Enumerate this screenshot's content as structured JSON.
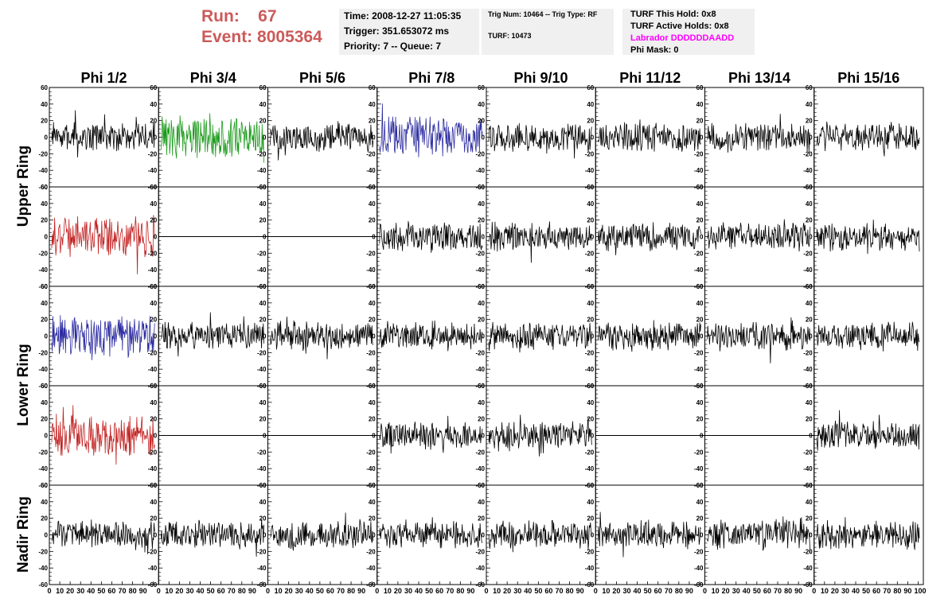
{
  "header": {
    "run_label": "Run:",
    "run_value": "67",
    "event_label": "Event:",
    "event_value": "8005364",
    "time": "Time: 2008-12-27 11:05:35",
    "trigger": "Trigger: 351.653072 ms",
    "priority": "Priority: 7 -- Queue: 7",
    "trig_num": "Trig Num: 10464 -- Trig Type: RF",
    "turf": "TURF: 10473",
    "turf_hold": "TURF This Hold: 0x8",
    "turf_active": "TURF Active Holds: 0x8",
    "labrador": "Labrador DDDDDDAADD",
    "phi_mask": "Phi Mask: 0",
    "labrador_color": "#ff00ff",
    "run_color": "#cc5a5a"
  },
  "columns": [
    "Phi 1/2",
    "Phi 3/4",
    "Phi 5/6",
    "Phi 7/8",
    "Phi 9/10",
    "Phi 11/12",
    "Phi 13/14",
    "Phi 15/16"
  ],
  "rows": [
    "Upper Ring",
    "Lower Ring",
    "Nadir Ring"
  ],
  "chart_data": {
    "type": "line",
    "layout": "grid of 5 rows x 8 columns of waveform panels",
    "xlim": [
      0,
      100
    ],
    "ylim": [
      -60,
      60
    ],
    "y_ticks": [
      -60,
      -40,
      -20,
      0,
      20,
      40,
      60
    ],
    "x_tick_labels": [
      "0",
      "10",
      "20",
      "30",
      "40",
      "50",
      "60",
      "70",
      "80",
      "90",
      "100"
    ],
    "x_axis_label_text": "0 10203040506070809010",
    "grid": false,
    "colors": {
      "black": "#000000",
      "green": "#1a9a1a",
      "blue": "#2a2aa0",
      "red": "#c22020"
    },
    "panels": [
      [
        "black",
        "green",
        "black",
        "blue",
        "black",
        "black",
        "black",
        "black"
      ],
      [
        "red",
        "flat",
        "flat",
        "black",
        "black",
        "black",
        "black",
        "black"
      ],
      [
        "blue",
        "black",
        "black",
        "black",
        "black",
        "black",
        "black",
        "black"
      ],
      [
        "red",
        "flat",
        "flat",
        "black",
        "black",
        "flat",
        "flat",
        "black"
      ],
      [
        "black",
        "black",
        "black",
        "black",
        "black",
        "black",
        "black",
        "black"
      ]
    ]
  }
}
